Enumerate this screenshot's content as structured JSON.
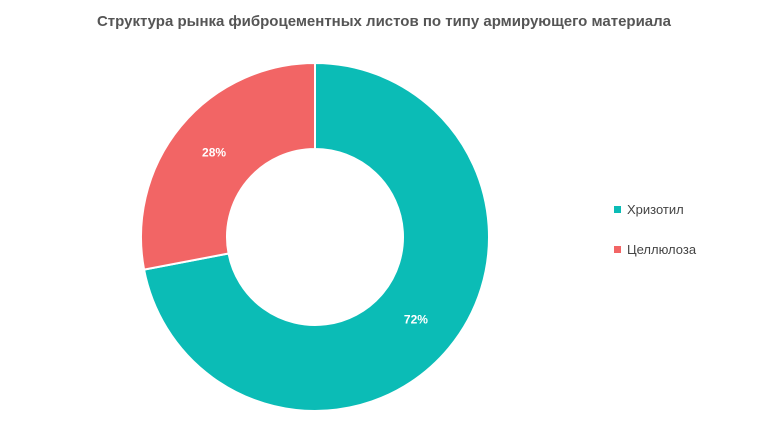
{
  "chart_data": {
    "type": "pie",
    "donut": true,
    "title": "Структура рынка  фиброцементных листов по типу армирующего материала",
    "categories": [
      "Хризотил",
      "Целлюлоза"
    ],
    "values": [
      72,
      28
    ],
    "value_labels": [
      "72%",
      "28%"
    ],
    "colors": [
      "#0bbcb6",
      "#f26565"
    ],
    "legend_position": "right"
  }
}
